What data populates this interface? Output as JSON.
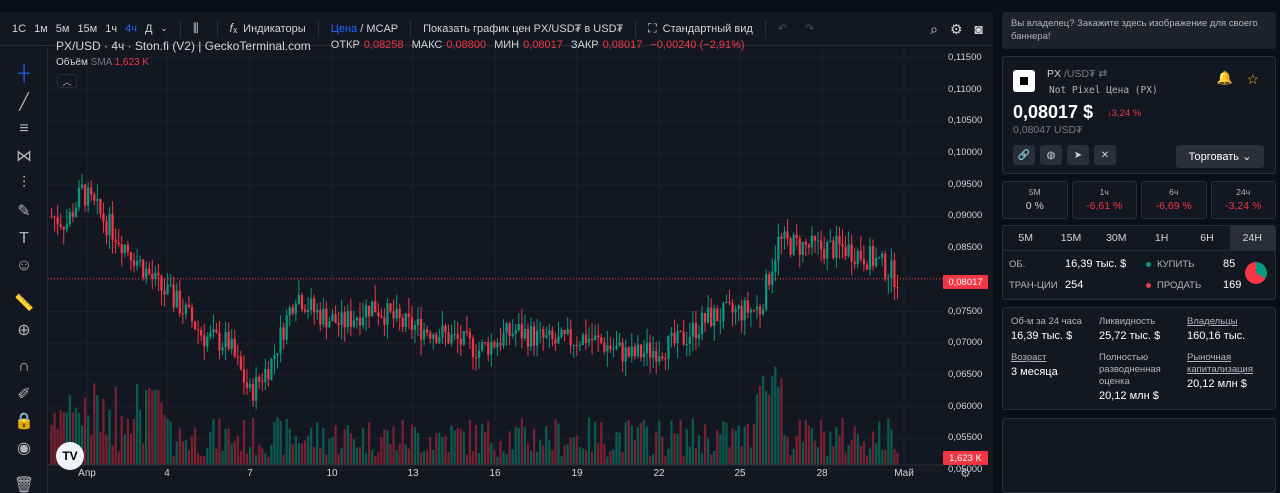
{
  "toolbar": {
    "timeframes": [
      "1С",
      "1м",
      "5м",
      "15м",
      "1ч",
      "4ч",
      "Д"
    ],
    "active_timeframe": "4ч",
    "indicators_label": "Индикаторы",
    "price_label": "Цена",
    "mcap_label": "/ MCAP",
    "show_chart_label": "Показать график цен PX/USD₮ в USD₮",
    "standard_view_label": "Стандартный вид"
  },
  "legend": {
    "pair": "PX/USD · 4ч · Ston.fi (V2) | GeckoTerminal.com",
    "open_label": "ОТКР",
    "open": "0,08258",
    "high_label": "МАКС",
    "high": "0,08800",
    "low_label": "МИН",
    "low": "0,08017",
    "close_label": "ЗАКР",
    "close": "0,08017",
    "change": "−0,00240 (−2,91%)",
    "volume_name": "Объём",
    "volume_ma": "SMA",
    "volume_value": "1,623 K"
  },
  "price_axis": {
    "labels": [
      "0,11500",
      "0,11000",
      "0,10500",
      "0,10000",
      "0,09500",
      "0,09000",
      "0,08500",
      "0,08000",
      "0,07500",
      "0,07000",
      "0,06500",
      "0,06000",
      "0,05500",
      "0,05000"
    ],
    "current_price_tag": "0,08017",
    "volume_tag": "1,623 K"
  },
  "time_axis": {
    "labels": [
      "Апр",
      "4",
      "7",
      "10",
      "13",
      "16",
      "19",
      "22",
      "25",
      "28",
      "Май"
    ]
  },
  "chart_data": {
    "type": "candlestick",
    "symbol": "PX/USD",
    "interval": "4ч",
    "ylim": [
      0.05,
      0.115
    ],
    "last_price": 0.08017,
    "close_path_anchors": [
      [
        0,
        0.09
      ],
      [
        5,
        0.089
      ],
      [
        10,
        0.094
      ],
      [
        18,
        0.089
      ],
      [
        25,
        0.085
      ],
      [
        35,
        0.079
      ],
      [
        42,
        0.076
      ],
      [
        50,
        0.071
      ],
      [
        58,
        0.07
      ],
      [
        65,
        0.062
      ],
      [
        72,
        0.067
      ],
      [
        80,
        0.078
      ],
      [
        86,
        0.075
      ],
      [
        95,
        0.073
      ],
      [
        105,
        0.076
      ],
      [
        115,
        0.073
      ],
      [
        125,
        0.072
      ],
      [
        140,
        0.069
      ],
      [
        152,
        0.072
      ],
      [
        165,
        0.07
      ],
      [
        175,
        0.071
      ],
      [
        190,
        0.068
      ],
      [
        205,
        0.07
      ],
      [
        215,
        0.074
      ],
      [
        225,
        0.075
      ],
      [
        232,
        0.0755
      ],
      [
        238,
        0.086
      ],
      [
        250,
        0.085
      ],
      [
        260,
        0.085
      ],
      [
        270,
        0.083
      ],
      [
        278,
        0.08
      ]
    ],
    "candle_count": 278,
    "colors": {
      "up": "#089981",
      "down": "#f23645"
    }
  },
  "panel": {
    "banner": "Вы владелец? Закажите здесь изображение для своего баннера!",
    "token_symbol": "PX",
    "token_pair": "/USD₮",
    "token_full_name": "Not Pixel Цена (PX)",
    "price_usd": "0,08017 $",
    "price_change": "↓3,24 %",
    "price_quote": "0,08047 USD₮",
    "trade_label": "Торговать",
    "changes": [
      {
        "period": "5М",
        "value": "0 %",
        "neg": false
      },
      {
        "period": "1ч",
        "value": "-6,61 %",
        "neg": true
      },
      {
        "period": "6ч",
        "value": "-6,69 %",
        "neg": true
      },
      {
        "period": "24ч",
        "value": "-3,24 %",
        "neg": true
      }
    ],
    "tabs": [
      "5M",
      "15M",
      "30M",
      "1H",
      "6H",
      "24H"
    ],
    "active_tab": "24H",
    "volume_label": "ОБ.",
    "volume_value": "16,39 тыс. $",
    "txns_label": "ТРАН-ЦИИ",
    "txns_value": "254",
    "buy_label": "КУПИТЬ",
    "buy_value": "85",
    "sell_label": "ПРОДАТЬ",
    "sell_value": "169",
    "vol24_label": "Об-м за 24 часа",
    "vol24_value": "16,39 тыс. $",
    "liquidity_label": "Ликвидность",
    "liquidity_value": "25,72 тыс. $",
    "holders_label": "Владельцы",
    "holders_value": "160,16 тыс.",
    "age_label": "Возраст",
    "age_value": "3 месяца",
    "fdv_label": "Полностью разводненная оценка",
    "fdv_value": "20,12 млн $",
    "mcap_label": "Рыночная капитализация",
    "mcap_value": "20,12 млн $"
  }
}
